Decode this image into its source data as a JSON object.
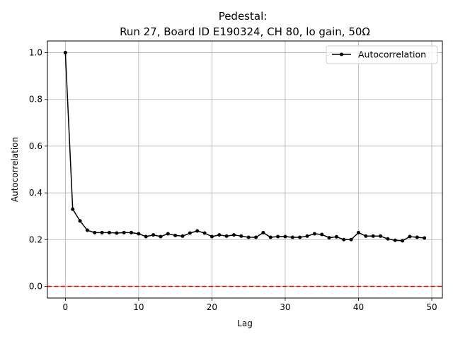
{
  "chart_data": {
    "type": "line",
    "title_line1": "Pedestal:",
    "title_line2": "Run 27, Board ID E190324, CH 80, lo gain, 50Ω",
    "xlabel": "Lag",
    "ylabel": "Autocorrelation",
    "xlim": [
      -2.45,
      51.45
    ],
    "ylim": [
      -0.05,
      1.05
    ],
    "xticks": [
      0,
      10,
      20,
      30,
      40,
      50
    ],
    "xtick_labels": [
      "0",
      "10",
      "20",
      "30",
      "40",
      "50"
    ],
    "yticks": [
      0.0,
      0.2,
      0.4,
      0.6,
      0.8,
      1.0
    ],
    "ytick_labels": [
      "0.0",
      "0.2",
      "0.4",
      "0.6",
      "0.8",
      "1.0"
    ],
    "grid": true,
    "legend_position": "top-right",
    "series": [
      {
        "name": "Autocorrelation",
        "color": "#000000",
        "marker": "dot",
        "x": [
          0,
          1,
          2,
          3,
          4,
          5,
          6,
          7,
          8,
          9,
          10,
          11,
          12,
          13,
          14,
          15,
          16,
          17,
          18,
          19,
          20,
          21,
          22,
          23,
          24,
          25,
          26,
          27,
          28,
          29,
          30,
          31,
          32,
          33,
          34,
          35,
          36,
          37,
          38,
          39,
          40,
          41,
          42,
          43,
          44,
          45,
          46,
          47,
          48,
          49
        ],
        "y": [
          1.0,
          0.33,
          0.28,
          0.24,
          0.23,
          0.23,
          0.23,
          0.228,
          0.23,
          0.23,
          0.225,
          0.213,
          0.22,
          0.213,
          0.225,
          0.218,
          0.215,
          0.228,
          0.237,
          0.228,
          0.213,
          0.22,
          0.215,
          0.22,
          0.215,
          0.21,
          0.21,
          0.23,
          0.21,
          0.213,
          0.213,
          0.21,
          0.21,
          0.215,
          0.225,
          0.222,
          0.208,
          0.212,
          0.2,
          0.2,
          0.23,
          0.215,
          0.215,
          0.215,
          0.203,
          0.197,
          0.195,
          0.213,
          0.21,
          0.207
        ]
      }
    ],
    "reference_line": {
      "y": 0.0,
      "color": "#ff0000",
      "style": "dashed"
    }
  }
}
